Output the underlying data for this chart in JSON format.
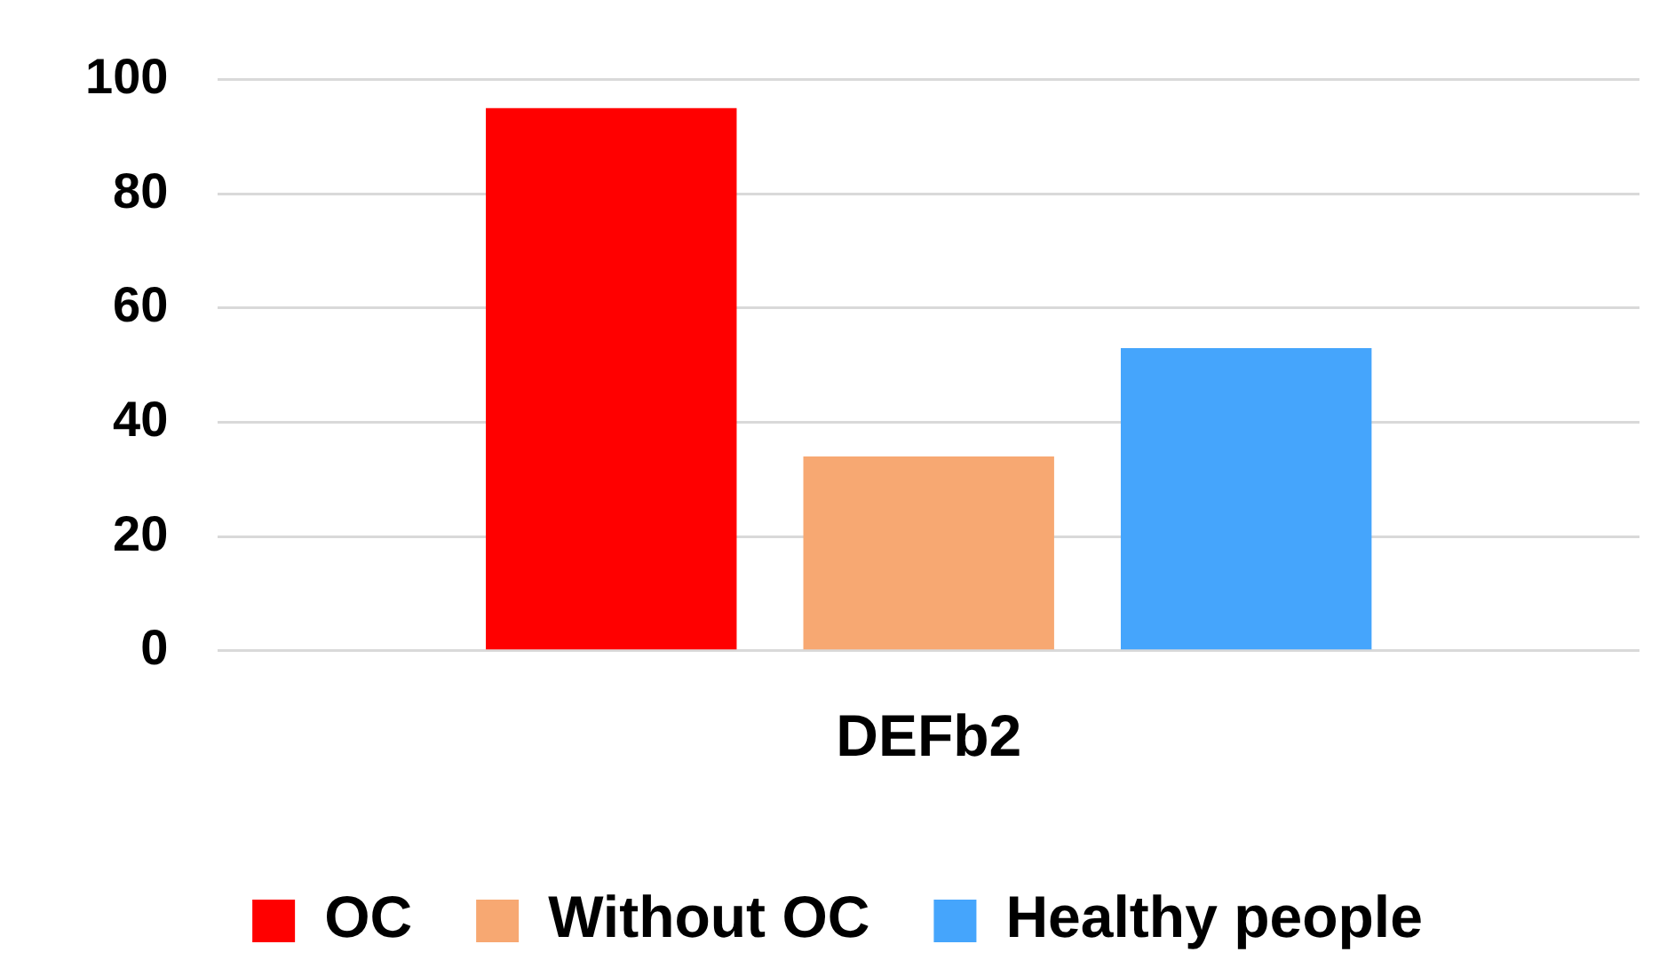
{
  "chart_data": {
    "type": "bar",
    "categories": [
      "DEFb2"
    ],
    "series": [
      {
        "name": "OC",
        "color": "#ff0000",
        "values": [
          95
        ]
      },
      {
        "name": "Without OC",
        "color": "#f7a872",
        "values": [
          34
        ]
      },
      {
        "name": "Healthy people",
        "color": "#45a5fc",
        "values": [
          53
        ]
      }
    ],
    "ylim": [
      0,
      100
    ],
    "yticks": [
      0,
      20,
      40,
      60,
      80,
      100
    ],
    "grid": "y",
    "legend": "bottom"
  }
}
